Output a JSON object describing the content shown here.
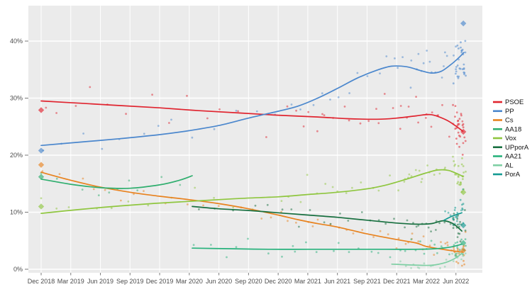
{
  "chart_data": {
    "type": "scatter",
    "title": "",
    "xlabel": "",
    "ylabel": "",
    "x_tick_labels": [
      "Dec 2018",
      "Mar 2019",
      "Jun 2019",
      "Sep 2019",
      "Dec 2019",
      "Mar 2020",
      "Jun 2020",
      "Sep 2020",
      "Dec 2020",
      "Mar 2021",
      "Jun 2021",
      "Sep 2021",
      "Dec 2021",
      "Mar 2022",
      "Jun 2022"
    ],
    "x_tick_months": [
      0,
      3,
      6,
      9,
      12,
      15,
      18,
      21,
      24,
      27,
      30,
      33,
      36,
      39,
      42
    ],
    "y_tick_labels": [
      "0%",
      "10%",
      "20%",
      "30%",
      "40%"
    ],
    "y_tick_values": [
      0,
      10,
      20,
      30,
      40
    ],
    "ylim": [
      0,
      46.2
    ],
    "grid": true,
    "legend_position": "right",
    "panel_color": "#ebebeb",
    "grid_color": "#ffffff",
    "axis_text_color": "#4d4d4d",
    "series": [
      {
        "name": "PSOE",
        "color": "#e0242f",
        "sigma": 1.5,
        "end_cluster": 26,
        "trend": [
          [
            0,
            29.5
          ],
          [
            4,
            29.1
          ],
          [
            8,
            28.7
          ],
          [
            12,
            28.3
          ],
          [
            16,
            27.8
          ],
          [
            20,
            27.4
          ],
          [
            24,
            27.0
          ],
          [
            28,
            26.7
          ],
          [
            31,
            26.4
          ],
          [
            34,
            26.3
          ],
          [
            36,
            26.5
          ],
          [
            38,
            26.9
          ],
          [
            39.5,
            27.1
          ],
          [
            41,
            26.2
          ],
          [
            42,
            25.1
          ],
          [
            42.7,
            24.2
          ]
        ]
      },
      {
        "name": "PP",
        "color": "#4b87cd",
        "sigma": 1.7,
        "end_cluster": 30,
        "trend": [
          [
            0,
            21.7
          ],
          [
            4,
            22.3
          ],
          [
            8,
            22.9
          ],
          [
            12,
            23.6
          ],
          [
            15,
            24.3
          ],
          [
            18,
            25.2
          ],
          [
            21,
            26.5
          ],
          [
            24,
            27.7
          ],
          [
            26,
            28.6
          ],
          [
            28,
            30.0
          ],
          [
            30,
            31.7
          ],
          [
            32,
            33.5
          ],
          [
            34,
            34.9
          ],
          [
            35.5,
            35.6
          ],
          [
            37,
            35.5
          ],
          [
            38.5,
            34.8
          ],
          [
            39.5,
            34.4
          ],
          [
            40.5,
            34.7
          ],
          [
            41.5,
            35.9
          ],
          [
            42.3,
            37.1
          ],
          [
            42.8,
            38.0
          ]
        ]
      },
      {
        "name": "Cs",
        "color": "#e8821e",
        "sigma": 1.0,
        "end_cluster": 16,
        "trend": [
          [
            0,
            17.0
          ],
          [
            3,
            15.6
          ],
          [
            6,
            14.4
          ],
          [
            9,
            13.5
          ],
          [
            12,
            12.8
          ],
          [
            15,
            12.2
          ],
          [
            18,
            11.5
          ],
          [
            21,
            10.6
          ],
          [
            24,
            9.5
          ],
          [
            26,
            8.7
          ],
          [
            28,
            8.0
          ],
          [
            30,
            7.4
          ],
          [
            33,
            6.2
          ],
          [
            36,
            5.2
          ],
          [
            38,
            4.6
          ],
          [
            39,
            4.0
          ],
          [
            41,
            3.4
          ],
          [
            42.7,
            3.0
          ]
        ]
      },
      {
        "name": "AA18",
        "color": "#2fae6e",
        "sigma": 0.9,
        "end_cluster": 0,
        "trend": [
          [
            0,
            15.8
          ],
          [
            3,
            14.9
          ],
          [
            6,
            14.3
          ],
          [
            9,
            14.2
          ],
          [
            12,
            14.8
          ],
          [
            14,
            15.6
          ],
          [
            15.3,
            16.4
          ]
        ]
      },
      {
        "name": "Vox",
        "color": "#8fc63f",
        "sigma": 1.2,
        "end_cluster": 24,
        "trend": [
          [
            0,
            9.8
          ],
          [
            4,
            10.5
          ],
          [
            8,
            11.1
          ],
          [
            12,
            11.6
          ],
          [
            16,
            12.0
          ],
          [
            20,
            12.4
          ],
          [
            24,
            12.7
          ],
          [
            27,
            13.1
          ],
          [
            30,
            13.5
          ],
          [
            33,
            14.1
          ],
          [
            35,
            14.8
          ],
          [
            37,
            15.8
          ],
          [
            39,
            16.9
          ],
          [
            40.2,
            17.4
          ],
          [
            41.3,
            17.3
          ],
          [
            42.7,
            16.3
          ]
        ]
      },
      {
        "name": "UPporA",
        "color": "#176f3f",
        "sigma": 1.0,
        "end_cluster": 16,
        "trend": [
          [
            15.3,
            11.0
          ],
          [
            18,
            10.6
          ],
          [
            21,
            10.3
          ],
          [
            24,
            9.9
          ],
          [
            27,
            9.5
          ],
          [
            30,
            9.1
          ],
          [
            33,
            8.6
          ],
          [
            36,
            8.1
          ],
          [
            38,
            7.9
          ],
          [
            39.5,
            8.0
          ],
          [
            40.7,
            8.5
          ],
          [
            41.7,
            8.0
          ],
          [
            42.6,
            6.7
          ]
        ]
      },
      {
        "name": "AA21",
        "color": "#28b27c",
        "sigma": 0.8,
        "end_cluster": 14,
        "trend": [
          [
            15.3,
            3.7
          ],
          [
            19,
            3.6
          ],
          [
            23,
            3.5
          ],
          [
            27,
            3.5
          ],
          [
            31,
            3.5
          ],
          [
            35,
            3.5
          ],
          [
            38,
            3.5
          ],
          [
            40,
            3.6
          ],
          [
            41.5,
            3.9
          ],
          [
            42.6,
            4.4
          ]
        ]
      },
      {
        "name": "AL",
        "color": "#7fcfa4",
        "sigma": 0.45,
        "end_cluster": 8,
        "trend": [
          [
            35.5,
            0.9
          ],
          [
            37.5,
            0.75
          ],
          [
            39.5,
            0.7
          ],
          [
            41,
            1.2
          ],
          [
            42,
            2.0
          ],
          [
            42.6,
            2.8
          ]
        ]
      },
      {
        "name": "PorA",
        "color": "#149a92",
        "sigma": 1.1,
        "end_cluster": 18,
        "trend": [
          [
            40.8,
            8.6
          ],
          [
            41.6,
            9.3
          ],
          [
            42.6,
            9.9
          ]
        ]
      }
    ],
    "election_results": [
      {
        "party": "PSOE",
        "month": 0,
        "value": 27.9
      },
      {
        "party": "PP",
        "month": 0,
        "value": 20.8
      },
      {
        "party": "Cs",
        "month": 0,
        "value": 18.3
      },
      {
        "party": "AA18",
        "month": 0,
        "value": 16.2
      },
      {
        "party": "Vox",
        "month": 0,
        "value": 11.0
      },
      {
        "party": "PP",
        "month": 42.75,
        "value": 43.1
      },
      {
        "party": "PSOE",
        "month": 42.75,
        "value": 24.1
      },
      {
        "party": "Vox",
        "month": 42.75,
        "value": 13.5
      },
      {
        "party": "PorA",
        "month": 42.75,
        "value": 7.7
      },
      {
        "party": "AA21",
        "month": 42.75,
        "value": 4.6
      },
      {
        "party": "Cs",
        "month": 42.75,
        "value": 3.3
      }
    ],
    "legend": [
      "PSOE",
      "PP",
      "Cs",
      "AA18",
      "Vox",
      "UPporA",
      "AA21",
      "AL",
      "PorA"
    ]
  }
}
